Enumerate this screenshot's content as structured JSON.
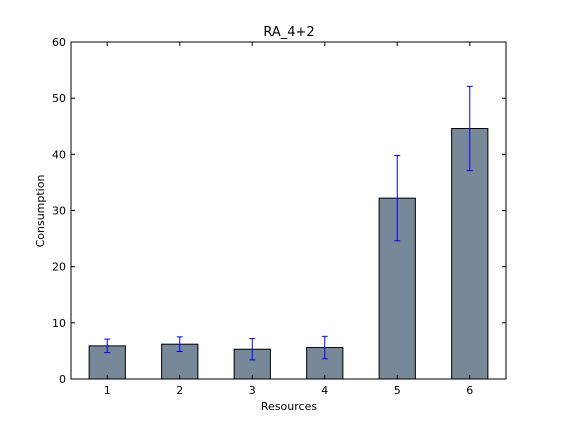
{
  "chart_data": {
    "type": "bar",
    "title": "RA_4+2",
    "xlabel": "Resources",
    "ylabel": "Consumption",
    "categories": [
      "1",
      "2",
      "3",
      "4",
      "5",
      "6"
    ],
    "values": [
      5.9,
      6.2,
      5.3,
      5.6,
      32.2,
      44.6
    ],
    "errors": [
      1.2,
      1.3,
      1.9,
      2.0,
      7.6,
      7.5
    ],
    "ylim": [
      0,
      60
    ],
    "yticks": [
      0,
      10,
      20,
      30,
      40,
      50,
      60
    ],
    "grid": false,
    "bar_color": "#778899",
    "error_color": "#0000ff"
  }
}
